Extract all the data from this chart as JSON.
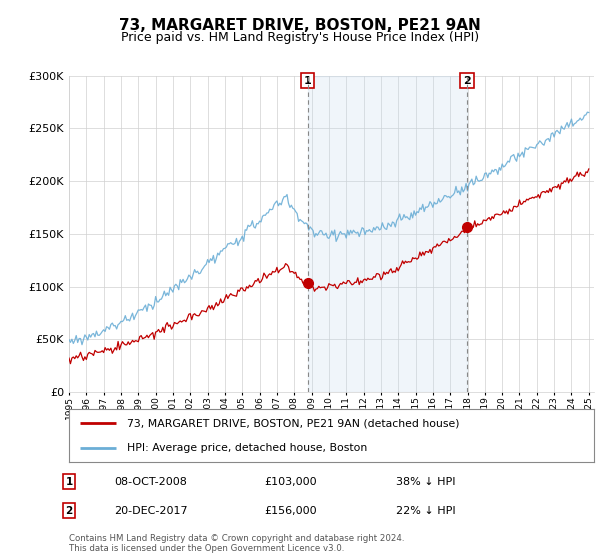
{
  "title": "73, MARGARET DRIVE, BOSTON, PE21 9AN",
  "subtitle": "Price paid vs. HM Land Registry's House Price Index (HPI)",
  "legend_line1": "73, MARGARET DRIVE, BOSTON, PE21 9AN (detached house)",
  "legend_line2": "HPI: Average price, detached house, Boston",
  "footer": "Contains HM Land Registry data © Crown copyright and database right 2024.\nThis data is licensed under the Open Government Licence v3.0.",
  "sale1_date": "08-OCT-2008",
  "sale1_price": "£103,000",
  "sale1_hpi": "38% ↓ HPI",
  "sale2_date": "20-DEC-2017",
  "sale2_price": "£156,000",
  "sale2_hpi": "22% ↓ HPI",
  "sale1_x": 2008.78,
  "sale1_y": 103000,
  "sale2_x": 2017.97,
  "sale2_y": 156000,
  "ylim": [
    0,
    300000
  ],
  "xlim_start": 1995.0,
  "xlim_end": 2025.3,
  "hpi_color": "#6baed6",
  "hpi_fill_color": "#c6dbef",
  "price_color": "#c00000",
  "sale_vline_color": "#aaaaaa",
  "plot_bg_color": "#ffffff",
  "grid_color": "#d0d0d0",
  "title_fontsize": 11,
  "subtitle_fontsize": 9
}
